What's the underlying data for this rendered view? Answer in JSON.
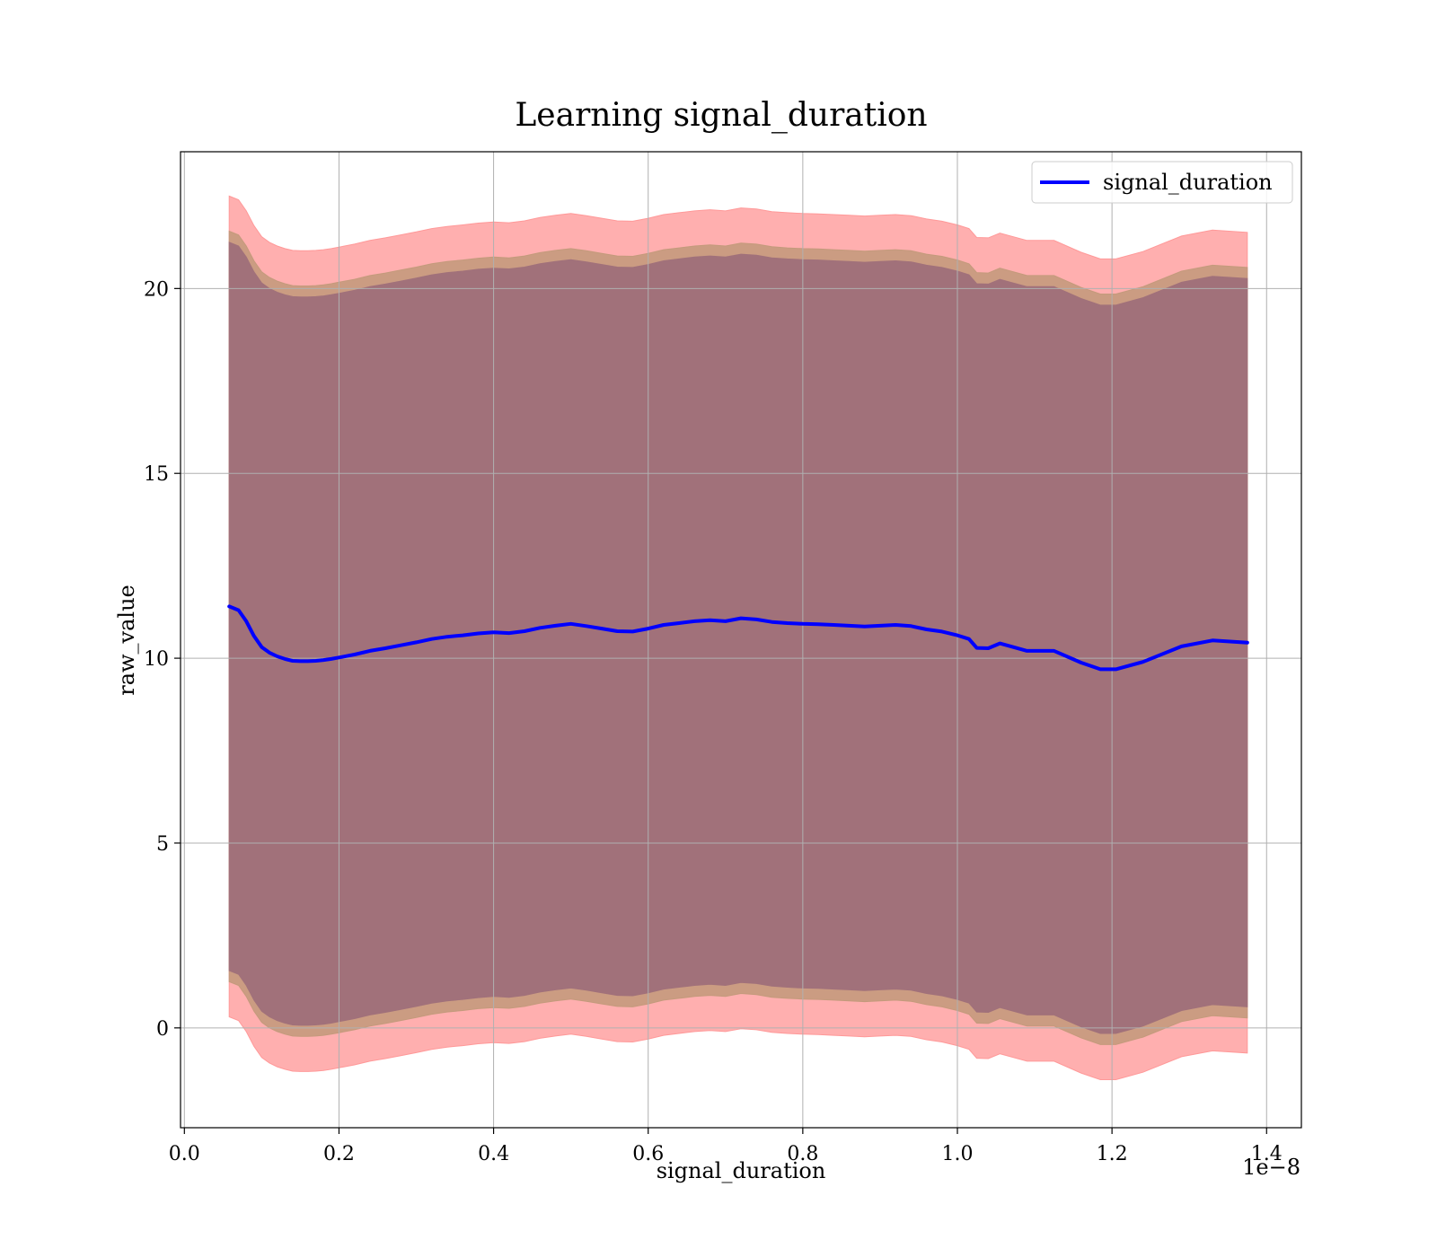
{
  "chart_data": {
    "type": "line",
    "title": "Learning signal_duration",
    "xlabel": "signal_duration",
    "ylabel": "raw_value",
    "x_offset_label": "1e−8",
    "xlim": [
      -0.005,
      1.445
    ],
    "ylim": [
      -2.7,
      23.7
    ],
    "x_ticks": [
      0.0,
      0.2,
      0.4,
      0.6,
      0.8,
      1.0,
      1.2,
      1.4
    ],
    "x_tick_labels": [
      "0.0",
      "0.2",
      "0.4",
      "0.6",
      "0.8",
      "1.0",
      "1.2",
      "1.4"
    ],
    "y_ticks": [
      0,
      5,
      10,
      15,
      20
    ],
    "y_tick_labels": [
      "0",
      "5",
      "10",
      "15",
      "20"
    ],
    "grid": true,
    "legend_position": "top-right",
    "colors": {
      "line": "#0000ff",
      "outer_band": "#ff9999",
      "middle_band": "#c49a7c",
      "inner_band": "#a1717a",
      "grid": "#b0b0b0"
    },
    "series": [
      {
        "name": "signal_duration",
        "x": [
          0.058,
          0.07,
          0.08,
          0.09,
          0.1,
          0.11,
          0.12,
          0.13,
          0.14,
          0.15,
          0.16,
          0.17,
          0.18,
          0.19,
          0.2,
          0.22,
          0.24,
          0.26,
          0.28,
          0.3,
          0.32,
          0.34,
          0.36,
          0.38,
          0.4,
          0.42,
          0.44,
          0.46,
          0.48,
          0.5,
          0.52,
          0.54,
          0.56,
          0.58,
          0.6,
          0.62,
          0.64,
          0.66,
          0.68,
          0.7,
          0.72,
          0.74,
          0.76,
          0.78,
          0.8,
          0.82,
          0.84,
          0.86,
          0.88,
          0.9,
          0.92,
          0.94,
          0.96,
          0.98,
          1.0,
          1.015,
          1.025,
          1.04,
          1.055,
          1.09,
          1.125,
          1.16,
          1.185,
          1.205,
          1.24,
          1.29,
          1.33,
          1.375
        ],
        "values": [
          11.4,
          11.3,
          11.0,
          10.6,
          10.3,
          10.15,
          10.05,
          9.98,
          9.93,
          9.92,
          9.92,
          9.93,
          9.95,
          9.98,
          10.02,
          10.1,
          10.2,
          10.27,
          10.35,
          10.43,
          10.52,
          10.58,
          10.62,
          10.67,
          10.7,
          10.68,
          10.73,
          10.82,
          10.88,
          10.93,
          10.87,
          10.8,
          10.73,
          10.72,
          10.8,
          10.9,
          10.95,
          11.0,
          11.03,
          11.0,
          11.08,
          11.05,
          10.98,
          10.95,
          10.93,
          10.92,
          10.9,
          10.88,
          10.86,
          10.88,
          10.9,
          10.87,
          10.78,
          10.72,
          10.62,
          10.52,
          10.28,
          10.27,
          10.4,
          10.2,
          10.2,
          9.88,
          9.7,
          9.7,
          9.9,
          10.32,
          10.48,
          10.42
        ]
      }
    ],
    "bands": [
      {
        "half_width": 11.1,
        "color": "outer_band",
        "opacity": 0.78
      },
      {
        "half_width": 10.15,
        "color": "middle_band",
        "opacity": 0.88
      },
      {
        "half_width": 9.85,
        "color": "inner_band",
        "opacity": 1.0
      }
    ]
  }
}
